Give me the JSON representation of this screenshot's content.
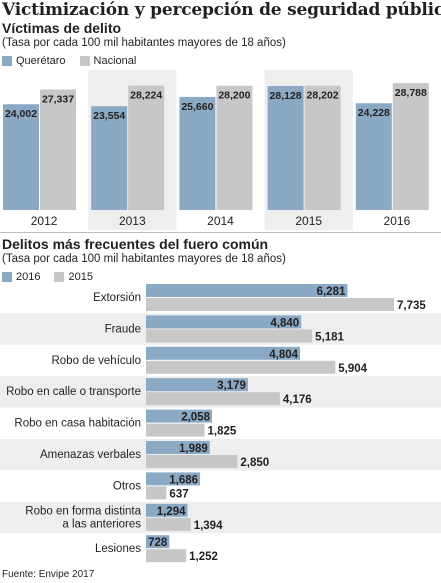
{
  "header": {
    "title": "Victimización y percepción de seguridad pública",
    "source": "Fuente: Envipe 2017"
  },
  "colors": {
    "primary": "#8aa9c5",
    "secondary": "#c7c7c7"
  },
  "chart_data": [
    {
      "type": "bar",
      "title": "Víctimas de delito",
      "subtitle": "(Tasa por cada 100 mil habitantes mayores de 18 años)",
      "categories": [
        "2012",
        "2013",
        "2014",
        "2015",
        "2016"
      ],
      "series": [
        {
          "name": "Querétaro",
          "values": [
            24002,
            23554,
            25660,
            28128,
            24228
          ],
          "labels": [
            "24,002",
            "23,554",
            "25,660",
            "28,128",
            "24,228"
          ]
        },
        {
          "name": "Nacional",
          "values": [
            27337,
            28224,
            28200,
            28202,
            28788
          ],
          "labels": [
            "27,337",
            "28,224",
            "28,200",
            "28,202",
            "28,788"
          ]
        }
      ],
      "ylim": [
        0,
        29500
      ],
      "legend": "top-left",
      "grid": false
    },
    {
      "type": "bar",
      "orientation": "horizontal",
      "title": "Delitos más frecuentes del fuero común",
      "subtitle": "(Tasa por cada 100 mil habitantes mayores de 18 años)",
      "categories": [
        "Extorsión",
        "Fraude",
        "Robo de vehículo",
        "Robo en calle o transporte",
        "Robo en casa habitación",
        "Amenazas verbales",
        "Otros",
        "Robo en forma distinta|a las anteriores",
        "Lesiones"
      ],
      "series": [
        {
          "name": "2016",
          "values": [
            6281,
            4840,
            4804,
            3179,
            2058,
            1989,
            1686,
            1294,
            728
          ],
          "labels": [
            "6,281",
            "4,840",
            "4,804",
            "3,179",
            "2,058",
            "1,989",
            "1,686",
            "1,294",
            "728"
          ]
        },
        {
          "name": "2015",
          "values": [
            7735,
            5181,
            5904,
            4176,
            1825,
            2850,
            637,
            1394,
            1252
          ],
          "labels": [
            "7,735",
            "5,181",
            "5,904",
            "4,176",
            "1,825",
            "2,850",
            "637",
            "1,394",
            "1,252"
          ]
        }
      ],
      "xlim": [
        0,
        7735
      ],
      "legend": "top-left",
      "grid": false
    }
  ]
}
